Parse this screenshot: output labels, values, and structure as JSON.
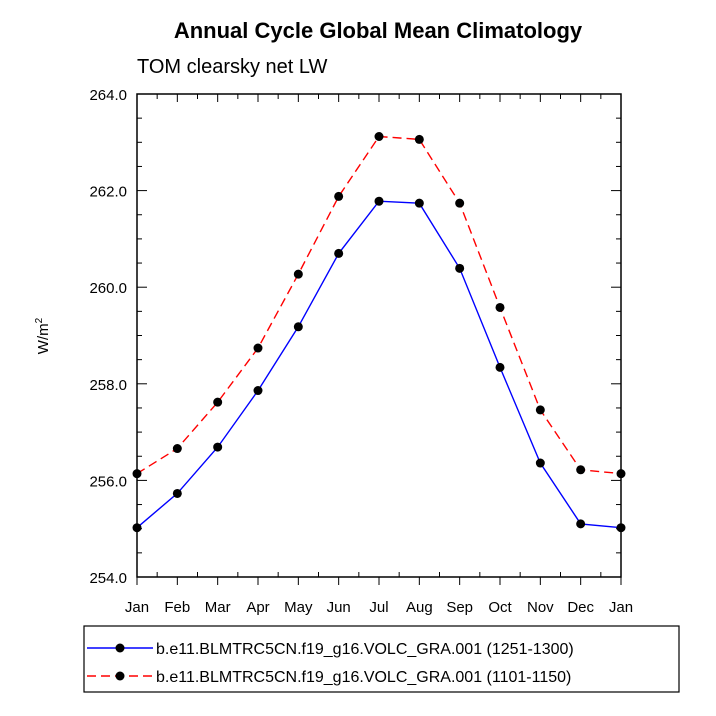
{
  "chart_data": {
    "type": "line",
    "title": "Annual Cycle Global Mean Climatology",
    "subtitle": "TOM clearsky net LW",
    "ylabel_base": "W/m",
    "ylabel_sup": "2",
    "xlabel": "",
    "categories": [
      "Jan",
      "Feb",
      "Mar",
      "Apr",
      "May",
      "Jun",
      "Jul",
      "Aug",
      "Sep",
      "Oct",
      "Nov",
      "Dec",
      "Jan"
    ],
    "ylim": [
      254.0,
      264.0
    ],
    "yticks": [
      254.0,
      256.0,
      258.0,
      260.0,
      262.0,
      264.0
    ],
    "ytick_labels": [
      "254.0",
      "256.0",
      "258.0",
      "260.0",
      "262.0",
      "264.0"
    ],
    "grid": false,
    "legend_position": "bottom",
    "series": [
      {
        "name": "b.e11.BLMTRC5CN.f19_g16.VOLC_GRA.001 (1251-1300)",
        "color": "#0000ff",
        "dash": "solid",
        "values": [
          255.02,
          255.73,
          256.69,
          257.86,
          259.18,
          260.7,
          261.78,
          261.74,
          260.39,
          258.34,
          256.36,
          255.1,
          255.02
        ]
      },
      {
        "name": "b.e11.BLMTRC5CN.f19_g16.VOLC_GRA.001 (1101-1150)",
        "color": "#ff0000",
        "dash": "dashed",
        "values": [
          256.14,
          256.66,
          257.62,
          258.74,
          260.27,
          261.88,
          263.12,
          263.06,
          261.74,
          259.58,
          257.46,
          256.22,
          256.14
        ]
      }
    ]
  }
}
